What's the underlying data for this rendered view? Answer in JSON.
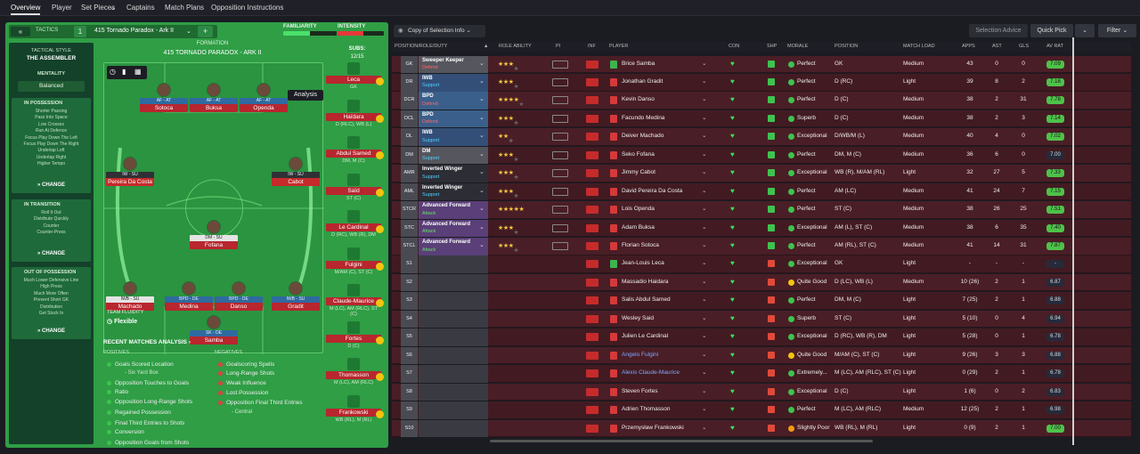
{
  "tabs": [
    "Overview",
    "Player",
    "Set Pieces",
    "Captains",
    "Match Plans",
    "Opposition Instructions"
  ],
  "tactics": {
    "label": "TACTICS",
    "num": "1",
    "name": "415 Tornado  Paradox - Ark II",
    "familiarity": "FAMILIARITY",
    "intensity": "INTENSITY",
    "familiarity_pct": 0.5,
    "intensity_pct": 0.55
  },
  "side": {
    "style_label": "TACTICAL STYLE",
    "style": "THE ASSEMBLER",
    "mentality_label": "MENTALITY",
    "mentality": "Balanced",
    "in_possession": {
      "title": "IN POSSESSION",
      "items": [
        "Shorter Passing",
        "Pass Into Space",
        "Low Crosses",
        "Run At Defence",
        "Focus Play Down The Left",
        "Focus Play Down The Right",
        "Underlap Left",
        "Underlap Right",
        "Higher Tempo"
      ]
    },
    "in_transition": {
      "title": "IN TRANSITION",
      "items": [
        "Roll It Out",
        "Distribute Quickly",
        "Counter",
        "Counter-Press"
      ]
    },
    "out_of_possession": {
      "title": "OUT OF POSSESSION",
      "items": [
        "Much Lower Defensive Line",
        "High Press",
        "Much More Often",
        "Prevent Short GK",
        "Distribution",
        "Get Stuck In"
      ]
    },
    "change": "CHANGE",
    "fluidity_label": "TEAM FLUIDITY",
    "fluidity": "Flexible"
  },
  "formation": {
    "label": "FORMATION",
    "name": "415 TORNADO  PARADOX - ARK II",
    "subs_label": "SUBS:",
    "subs": "12/15",
    "analysis": "Analysis"
  },
  "pitch": [
    {
      "pos": "AF - AT",
      "name": "Sotoca"
    },
    {
      "pos": "AF - AT",
      "name": "Buksa"
    },
    {
      "pos": "AF - AT",
      "name": "Openda"
    },
    {
      "pos": "IW - SU",
      "name": "Pereira Da Costa"
    },
    {
      "pos": "IW - SU",
      "name": "Cabot"
    },
    {
      "pos": "DM - SU",
      "name": "Fofana"
    },
    {
      "pos": "IWB - SU",
      "name": "Machado"
    },
    {
      "pos": "BPD - DE",
      "name": "Medina"
    },
    {
      "pos": "BPD - DE",
      "name": "Danso"
    },
    {
      "pos": "IWB - SU",
      "name": "Gradit"
    },
    {
      "pos": "SK - DE",
      "name": "Samba"
    }
  ],
  "subs": [
    {
      "name": "Leca",
      "pos": "GK"
    },
    {
      "name": "Haïdara",
      "pos": "D (RLC), WB (L)"
    },
    {
      "name": "Abdul Samed",
      "pos": "DM, M (C)"
    },
    {
      "name": "Saïd",
      "pos": "ST (C)"
    },
    {
      "name": "Le Cardinal",
      "pos": "D (RC), WB (R), DM"
    },
    {
      "name": "Fulgini",
      "pos": "M/AM (C), ST (C)"
    },
    {
      "name": "Claude-Maurice",
      "pos": "M (LC), AM (RLC), ST (C)"
    },
    {
      "name": "Fortes",
      "pos": "D (C)"
    },
    {
      "name": "Thomasson",
      "pos": "M (LC), AM (RLC)"
    },
    {
      "name": "Frankowski",
      "pos": "WB (RL), M (RL)"
    }
  ],
  "recent": {
    "title": "RECENT MATCHES ANALYSIS",
    "pos_label": "POSITIVES",
    "neg_label": "NEGATIVES",
    "positives": [
      "Goals Scored Location",
      "- Six Yard Box",
      "Opposition Touches to Goals",
      "Ratio",
      "Opposition Long-Range Shots",
      "Regained Possession",
      "Final Third Entries to Shots",
      "Conversion",
      "Opposition Goals from Shots"
    ],
    "negatives": [
      "Goalscoring Spells",
      "Long-Range Shots",
      "Weak Influence",
      "Lost Possession",
      "Opposition Final Third Entries",
      "- Central"
    ]
  },
  "right": {
    "copy": "Copy of Selection Info",
    "advice": "Selection Advice",
    "quickpick": "Quick Pick",
    "filter": "Filter",
    "headers": [
      "POSITION/ROLE/DUTY",
      "ROLE ABILITY",
      "PI",
      "INF",
      "PLAYER",
      "CON",
      "SHP",
      "MORALE",
      "POSITION",
      "MATCH LOAD",
      "APPS",
      "AST",
      "GLS",
      "AV RAT"
    ]
  },
  "rows": [
    {
      "p": "GK",
      "r1": "Sweeper Keeper",
      "r2": "Defend",
      "stars": 3,
      "name": "Brice Samba",
      "morale": "Perfect",
      "pos": "GK",
      "load": "Medium",
      "apps": "43",
      "ast": "0",
      "gls": "0",
      "av": "7.09",
      "gk": true
    },
    {
      "p": "DR",
      "r1": "IWB",
      "r2": "Support",
      "stars": 2.5,
      "name": "Jonathan Gradit",
      "morale": "Perfect",
      "pos": "D (RC)",
      "load": "Light",
      "apps": "39",
      "ast": "8",
      "gls": "2",
      "av": "7.18"
    },
    {
      "p": "DCR",
      "r1": "BPD",
      "r2": "Defend",
      "stars": 4,
      "name": "Kevin Danso",
      "morale": "Perfect",
      "pos": "D (C)",
      "load": "Medium",
      "apps": "38",
      "ast": "2",
      "gls": "31",
      "av": "7.78"
    },
    {
      "p": "DCL",
      "r1": "BPD",
      "r2": "Defend",
      "stars": 3,
      "name": "Facundo Medina",
      "morale": "Superb",
      "pos": "D (C)",
      "load": "Medium",
      "apps": "38",
      "ast": "2",
      "gls": "3",
      "av": "7.14"
    },
    {
      "p": "DL",
      "r1": "IWB",
      "r2": "Support",
      "stars": 2,
      "name": "Deiver Machado",
      "morale": "Exceptional",
      "pos": "D/WB/M (L)",
      "load": "Medium",
      "apps": "40",
      "ast": "4",
      "gls": "0",
      "av": "7.02"
    },
    {
      "p": "DM",
      "r1": "DM",
      "r2": "Support",
      "stars": 2.5,
      "name": "Seko Fofana",
      "morale": "Perfect",
      "pos": "DM, M (C)",
      "load": "Medium",
      "apps": "36",
      "ast": "6",
      "gls": "0",
      "av": "7.00",
      "avdk": true
    },
    {
      "p": "AMR",
      "r1": "Inverted Winger",
      "r2": "Support",
      "stars": 2.5,
      "name": "Jimmy Cabot",
      "morale": "Exceptional",
      "pos": "WB (R), M/AM (RL)",
      "load": "Light",
      "apps": "32",
      "ast": "27",
      "gls": "5",
      "av": "7.33"
    },
    {
      "p": "AML",
      "r1": "Inverted Winger",
      "r2": "Support",
      "stars": 2.5,
      "name": "David Pereira Da Costa",
      "morale": "Perfect",
      "pos": "AM (LC)",
      "load": "Medium",
      "apps": "41",
      "ast": "24",
      "gls": "7",
      "av": "7.15"
    },
    {
      "p": "STCR",
      "r1": "Advanced Forward",
      "r2": "Attack",
      "stars": 4.5,
      "name": "Lois Openda",
      "morale": "Perfect",
      "pos": "ST (C)",
      "load": "Medium",
      "apps": "38",
      "ast": "26",
      "gls": "25",
      "av": "7.51"
    },
    {
      "p": "STC",
      "r1": "Advanced Forward",
      "r2": "Attack",
      "stars": 3,
      "name": "Adam Buksa",
      "morale": "Exceptional",
      "pos": "AM (L), ST (C)",
      "load": "Medium",
      "apps": "38",
      "ast": "6",
      "gls": "35",
      "av": "7.40"
    },
    {
      "p": "STCL",
      "r1": "Advanced Forward",
      "r2": "Attack",
      "stars": 3,
      "name": "Florian Sotoca",
      "morale": "Perfect",
      "pos": "AM (RL), ST (C)",
      "load": "Medium",
      "apps": "41",
      "ast": "14",
      "gls": "31",
      "av": "7.87"
    },
    {
      "p": "S1",
      "name": "Jean-Louis Leca",
      "morale": "Exceptional",
      "pos": "GK",
      "load": "Light",
      "apps": "-",
      "ast": "-",
      "gls": "-",
      "av": "-",
      "avdk": true,
      "gk": true
    },
    {
      "p": "S2",
      "name": "Massadio Haidara",
      "morale": "Quite Good",
      "pos": "D (LC), WB (L)",
      "load": "Medium",
      "apps": "10 (26)",
      "ast": "2",
      "gls": "1",
      "av": "6.87",
      "avdk": true
    },
    {
      "p": "S3",
      "name": "Salis Abdul Samed",
      "morale": "Perfect",
      "pos": "DM, M (C)",
      "load": "Light",
      "apps": "7 (25)",
      "ast": "2",
      "gls": "1",
      "av": "6.88",
      "avdk": true
    },
    {
      "p": "S4",
      "name": "Wesley Said",
      "morale": "Superb",
      "pos": "ST (C)",
      "load": "Light",
      "apps": "5 (10)",
      "ast": "0",
      "gls": "4",
      "av": "6.94",
      "avdk": true
    },
    {
      "p": "S5",
      "name": "Julien Le Cardinal",
      "morale": "Exceptional",
      "pos": "D (RC), WB (R), DM",
      "load": "Light",
      "apps": "5 (28)",
      "ast": "0",
      "gls": "1",
      "av": "6.78",
      "avdk": true
    },
    {
      "p": "S6",
      "name": "Angelo Fulgini",
      "morale": "Quite Good",
      "pos": "M/AM (C), ST (C)",
      "load": "Light",
      "apps": "9 (26)",
      "ast": "3",
      "gls": "3",
      "av": "6.88",
      "avdk": true,
      "link": true
    },
    {
      "p": "S7",
      "name": "Alexis Claude-Maurice",
      "morale": "Extremely...",
      "pos": "M (LC), AM (RLC), ST (C)",
      "load": "Light",
      "apps": "0 (29)",
      "ast": "2",
      "gls": "1",
      "av": "6.78",
      "avdk": true,
      "link": true
    },
    {
      "p": "S8",
      "name": "Steven Fortes",
      "morale": "Exceptional",
      "pos": "D (C)",
      "load": "Light",
      "apps": "1 (6)",
      "ast": "0",
      "gls": "2",
      "av": "6.83",
      "avdk": true
    },
    {
      "p": "S9",
      "name": "Adrien Thomasson",
      "morale": "Perfect",
      "pos": "M (LC), AM (RLC)",
      "load": "Medium",
      "apps": "12 (25)",
      "ast": "2",
      "gls": "1",
      "av": "6.98",
      "avdk": true
    },
    {
      "p": "S10",
      "name": "Przemysław Frankowski",
      "morale": "Slightly Poor",
      "pos": "WB (RL), M (RL)",
      "load": "Light",
      "apps": "0 (9)",
      "ast": "2",
      "gls": "1",
      "av": "7.00"
    }
  ]
}
